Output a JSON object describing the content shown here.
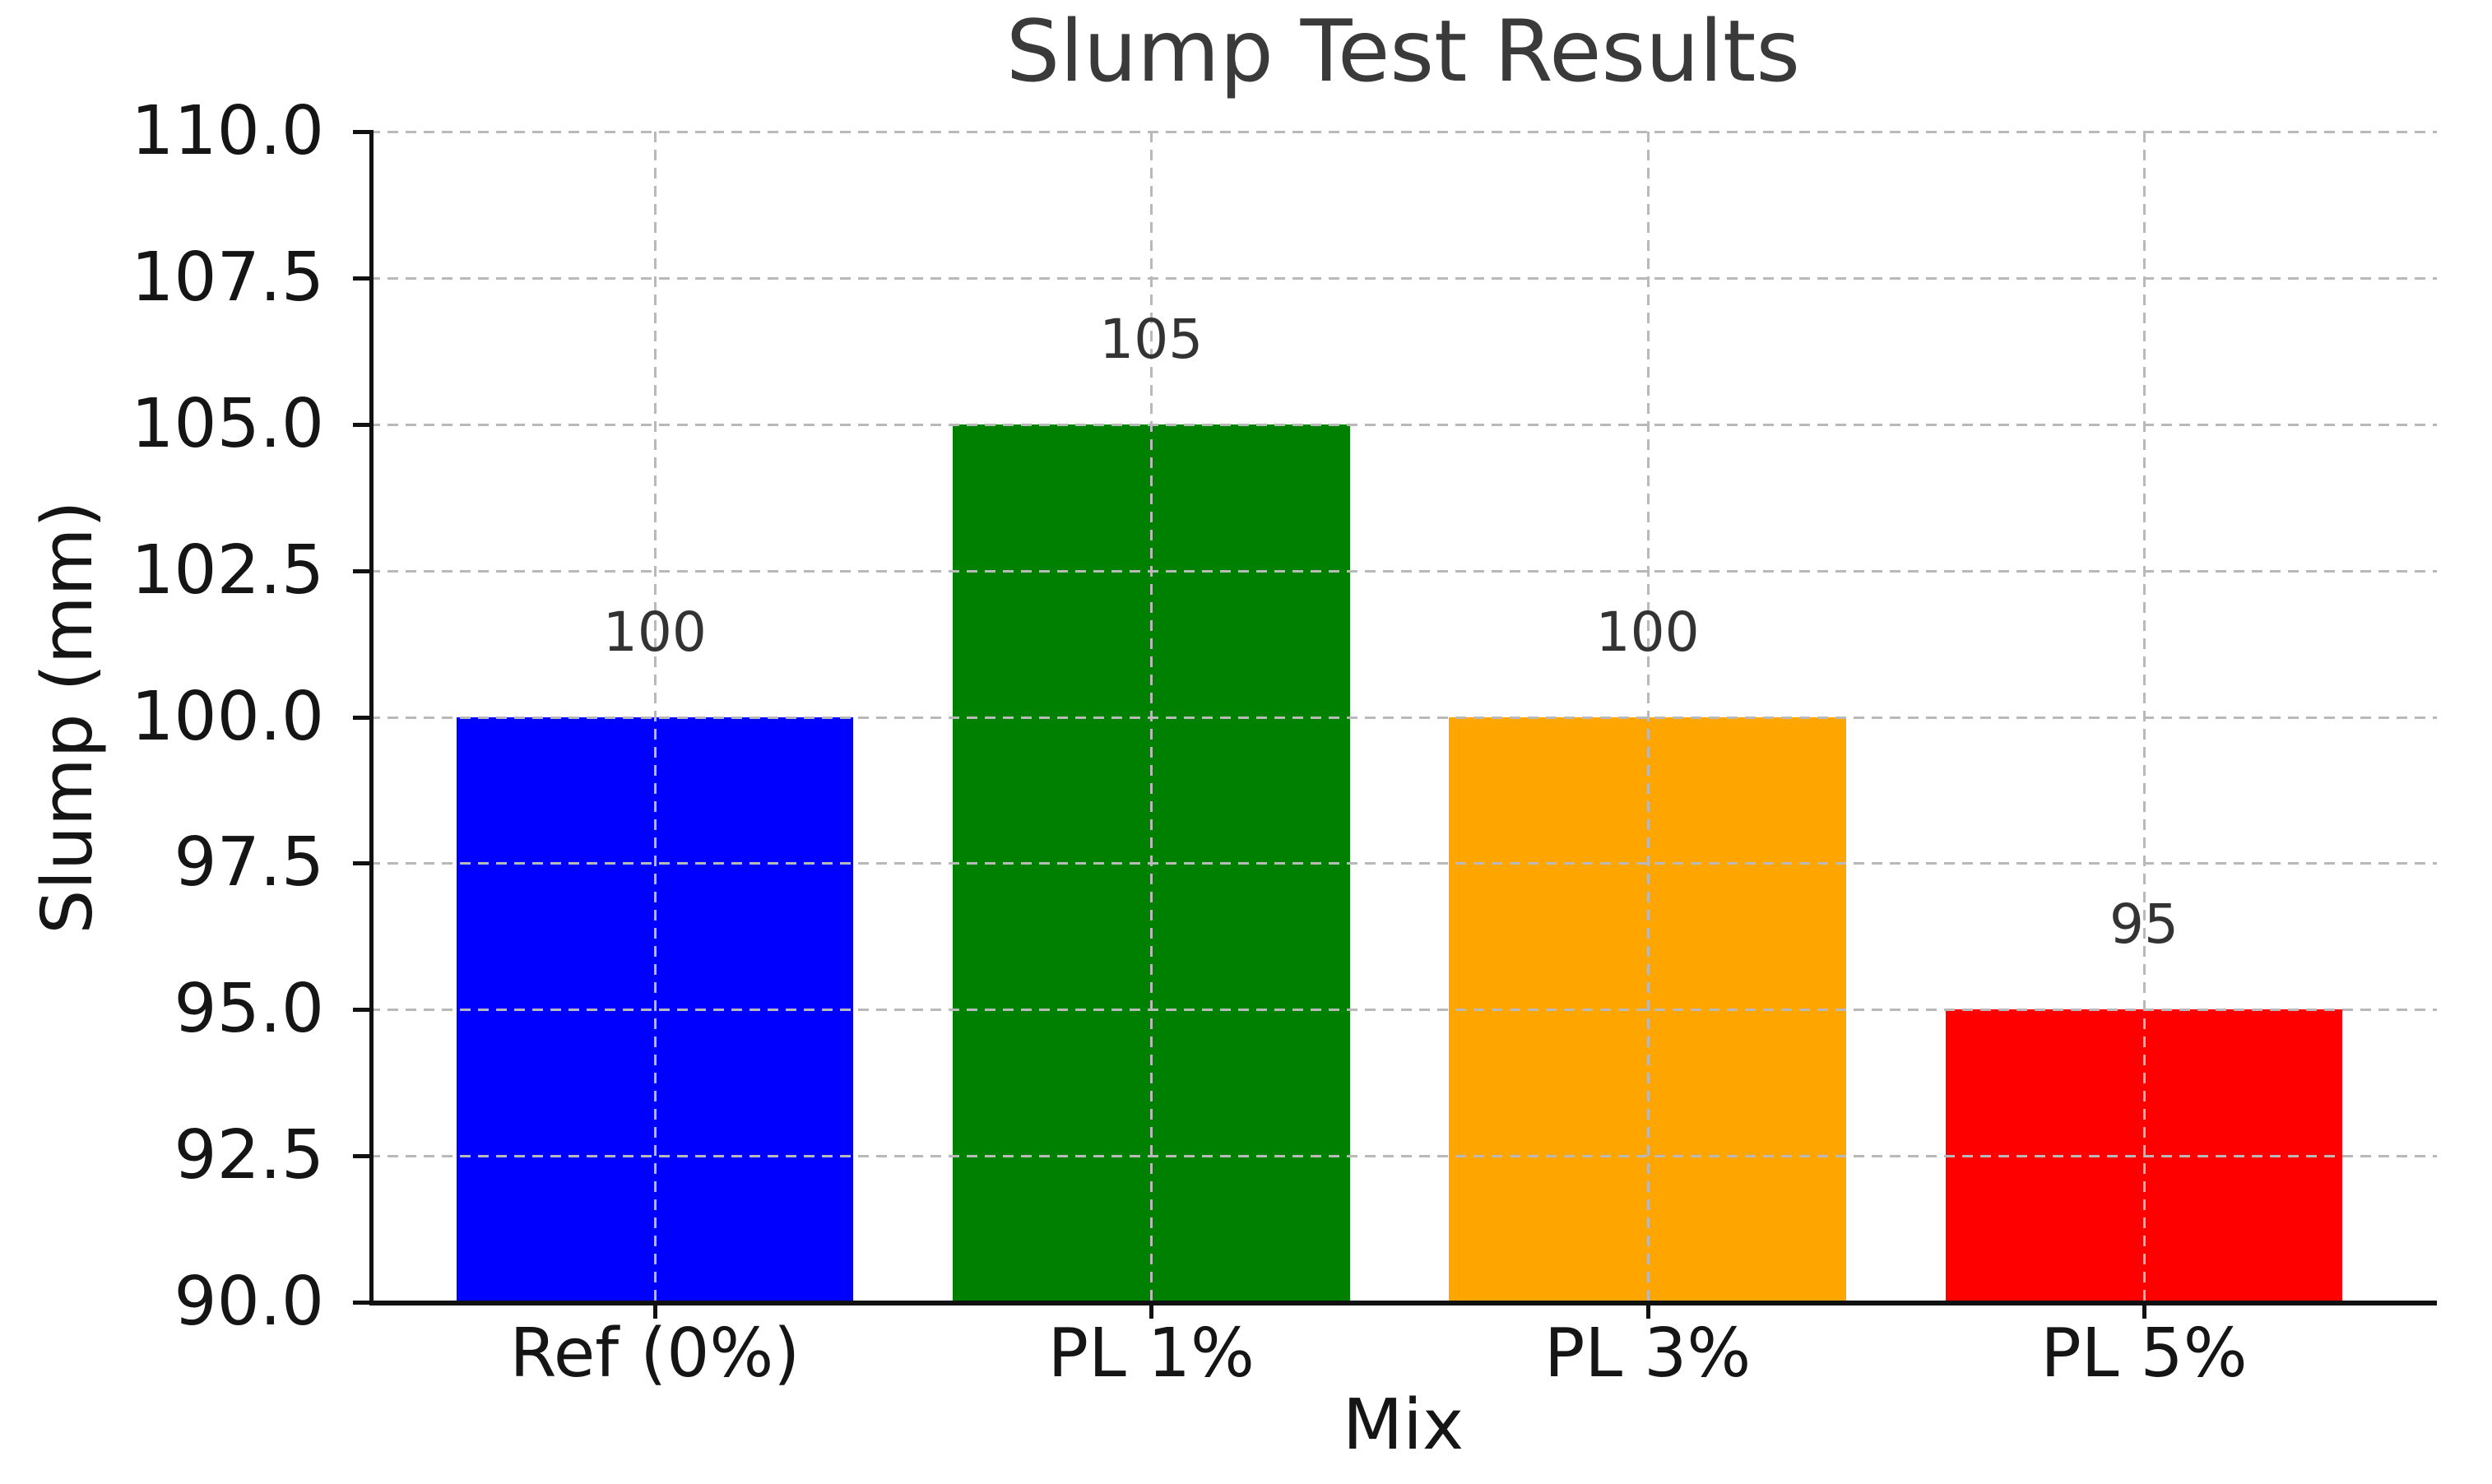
{
  "chart_data": {
    "type": "bar",
    "title": "Slump Test Results",
    "xlabel": "Mix",
    "ylabel": "Slump (mm)",
    "categories": [
      "Ref (0%)",
      "PL 1%",
      "PL 3%",
      "PL 5%"
    ],
    "values": [
      100,
      105,
      100,
      95
    ],
    "value_labels": [
      "100",
      "105",
      "100",
      "95"
    ],
    "bar_colors": [
      "#0000ff",
      "#008000",
      "#ffa500",
      "#ff0000"
    ],
    "ylim": [
      90,
      110
    ],
    "ytick_step": 2.5,
    "ytick_labels": [
      "110.0",
      "107.5",
      "105.0",
      "102.5",
      "100.0",
      "97.5",
      "95.0",
      "92.5",
      "90.0"
    ],
    "grid": "dashed",
    "grid_color": "#b9b9b9",
    "legend_position": "none",
    "bar_width_fraction": 0.8
  },
  "style_colors": {
    "title_text": "#3a3a3a",
    "tick_text": "#151515",
    "value_text": "#333333",
    "spine": "#111111",
    "background": "#ffffff"
  }
}
